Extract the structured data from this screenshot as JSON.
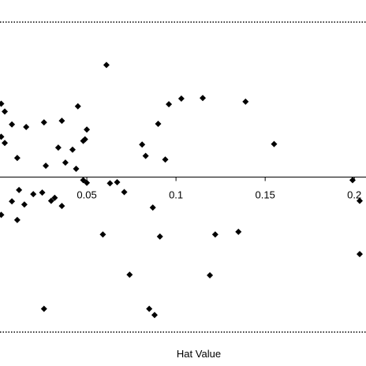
{
  "chart_data": {
    "type": "scatter",
    "title": "",
    "xlabel": "Hat Value",
    "ylabel": "",
    "xlim": [
      -0.0,
      0.203
    ],
    "ylim": [
      -3.0,
      3.0
    ],
    "grid": false,
    "x_ticks": [
      0.05,
      0.1,
      0.15,
      0.2
    ],
    "x_tick_labels": [
      "0.05",
      "0.1",
      "0.15",
      "0.2"
    ],
    "reference_lines": [
      {
        "y": 3.0,
        "style": "dotted"
      },
      {
        "y": 0.0,
        "style": "solid"
      },
      {
        "y": -3.0,
        "style": "dotted"
      }
    ],
    "marker": {
      "shape": "diamond",
      "color": "#000000"
    },
    "points": [
      {
        "x": 0.061,
        "y": 2.17
      },
      {
        "x": 0.002,
        "y": 1.42
      },
      {
        "x": 0.004,
        "y": 1.27
      },
      {
        "x": 0.045,
        "y": 1.37
      },
      {
        "x": 0.103,
        "y": 1.52
      },
      {
        "x": 0.115,
        "y": 1.53
      },
      {
        "x": 0.139,
        "y": 1.46
      },
      {
        "x": 0.096,
        "y": 1.41
      },
      {
        "x": 0.09,
        "y": 1.03
      },
      {
        "x": 0.155,
        "y": 0.64
      },
      {
        "x": 0.008,
        "y": 1.02
      },
      {
        "x": 0.016,
        "y": 0.97
      },
      {
        "x": 0.026,
        "y": 1.06
      },
      {
        "x": 0.036,
        "y": 1.09
      },
      {
        "x": 0.05,
        "y": 0.92
      },
      {
        "x": 0.048,
        "y": 0.7
      },
      {
        "x": 0.049,
        "y": 0.73
      },
      {
        "x": 0.002,
        "y": 0.78
      },
      {
        "x": 0.004,
        "y": 0.66
      },
      {
        "x": 0.034,
        "y": 0.57
      },
      {
        "x": 0.042,
        "y": 0.53
      },
      {
        "x": 0.011,
        "y": 0.37
      },
      {
        "x": 0.027,
        "y": 0.22
      },
      {
        "x": 0.044,
        "y": 0.16
      },
      {
        "x": 0.038,
        "y": 0.28
      },
      {
        "x": 0.081,
        "y": 0.63
      },
      {
        "x": 0.083,
        "y": 0.41
      },
      {
        "x": 0.094,
        "y": 0.34
      },
      {
        "x": 0.048,
        "y": -0.06
      },
      {
        "x": 0.05,
        "y": -0.11
      },
      {
        "x": 0.063,
        "y": -0.12
      },
      {
        "x": 0.067,
        "y": -0.1
      },
      {
        "x": 0.012,
        "y": -0.25
      },
      {
        "x": 0.02,
        "y": -0.33
      },
      {
        "x": 0.025,
        "y": -0.3
      },
      {
        "x": 0.008,
        "y": -0.47
      },
      {
        "x": 0.015,
        "y": -0.53
      },
      {
        "x": 0.03,
        "y": -0.46
      },
      {
        "x": 0.032,
        "y": -0.4
      },
      {
        "x": 0.036,
        "y": -0.56
      },
      {
        "x": 0.002,
        "y": -0.73
      },
      {
        "x": 0.011,
        "y": -0.83
      },
      {
        "x": 0.071,
        "y": -0.29
      },
      {
        "x": 0.087,
        "y": -0.59
      },
      {
        "x": 0.199,
        "y": -0.06
      },
      {
        "x": 0.203,
        "y": -0.46
      },
      {
        "x": 0.059,
        "y": -1.11
      },
      {
        "x": 0.091,
        "y": -1.15
      },
      {
        "x": 0.122,
        "y": -1.11
      },
      {
        "x": 0.135,
        "y": -1.06
      },
      {
        "x": 0.203,
        "y": -1.49
      },
      {
        "x": 0.074,
        "y": -1.89
      },
      {
        "x": 0.119,
        "y": -1.9
      },
      {
        "x": 0.026,
        "y": -2.55
      },
      {
        "x": 0.085,
        "y": -2.55
      },
      {
        "x": 0.088,
        "y": -2.67
      }
    ]
  }
}
